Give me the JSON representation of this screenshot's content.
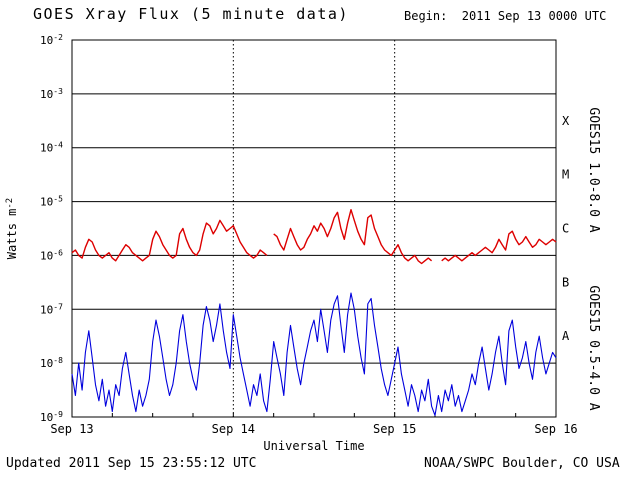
{
  "footer": {
    "updated": "Updated 2011 Sep 15 23:55:12 UTC",
    "credit": "NOAA/SWPC Boulder, CO USA"
  },
  "chart_data": {
    "type": "line",
    "title": "GOES Xray Flux (5 minute data)",
    "begin_label": "Begin:  2011 Sep 13 0000 UTC",
    "xlabel": "Universal Time",
    "ylabel": {
      "base": "Watts m",
      "exp": "-2"
    },
    "y_scale": "log10",
    "y_exponents": [
      -2,
      -3,
      -4,
      -5,
      -6,
      -7,
      -8,
      -9
    ],
    "ylim_log10": [
      -9,
      -2
    ],
    "x_range_hours": [
      0,
      72
    ],
    "x_step_hours": 0.5,
    "x_start": "2011 Sep 13 0000 UTC",
    "x_ticks": [
      {
        "hour": 0,
        "label": "Sep 13"
      },
      {
        "hour": 24,
        "label": "Sep 14"
      },
      {
        "hour": 48,
        "label": "Sep 15"
      },
      {
        "hour": 72,
        "label": "Sep 16"
      }
    ],
    "grid": {
      "horizontal": "solid",
      "vertical_day_lines": "dotted",
      "legend_position": "right-rotated"
    },
    "flare_classes": [
      {
        "label": "X",
        "log10_y": -3.5
      },
      {
        "label": "M",
        "log10_y": -4.5
      },
      {
        "label": "C",
        "log10_y": -5.5
      },
      {
        "label": "B",
        "log10_y": -6.5
      },
      {
        "label": "A",
        "log10_y": -7.5
      }
    ],
    "series": [
      {
        "name": "GOES15 1.0-8.0 A",
        "color": "#dd0000",
        "stroke_width": 1.4,
        "log10_values": [
          -5.95,
          -5.9,
          -6.0,
          -6.05,
          -5.85,
          -5.7,
          -5.75,
          -5.9,
          -6.0,
          -6.05,
          -6.0,
          -5.95,
          -6.05,
          -6.1,
          -6.0,
          -5.9,
          -5.8,
          -5.85,
          -5.95,
          -6.0,
          -6.05,
          -6.1,
          -6.05,
          -6.0,
          -5.7,
          -5.55,
          -5.65,
          -5.8,
          -5.9,
          -6.0,
          -6.05,
          -6.0,
          -5.6,
          -5.5,
          -5.7,
          -5.85,
          -5.95,
          -6.0,
          -5.9,
          -5.6,
          -5.4,
          -5.45,
          -5.6,
          -5.5,
          -5.35,
          -5.45,
          -5.55,
          -5.5,
          -5.45,
          -5.6,
          -5.75,
          -5.85,
          -5.95,
          -6.0,
          -6.05,
          -6.0,
          -5.9,
          -5.95,
          -6.0,
          null,
          -5.6,
          -5.65,
          -5.8,
          -5.9,
          -5.7,
          -5.5,
          -5.65,
          -5.8,
          -5.9,
          -5.85,
          -5.7,
          -5.6,
          -5.45,
          -5.55,
          -5.4,
          -5.5,
          -5.65,
          -5.5,
          -5.3,
          -5.2,
          -5.5,
          -5.7,
          -5.4,
          -5.15,
          -5.35,
          -5.55,
          -5.7,
          -5.8,
          -5.3,
          -5.25,
          -5.5,
          -5.65,
          -5.8,
          -5.9,
          -5.95,
          -6.0,
          -5.9,
          -5.8,
          -5.95,
          -6.05,
          -6.1,
          -6.05,
          -6.0,
          -6.1,
          -6.15,
          -6.1,
          -6.05,
          -6.1,
          null,
          null,
          -6.1,
          -6.05,
          -6.1,
          -6.05,
          -6.0,
          -6.05,
          -6.1,
          -6.05,
          -6.0,
          -5.95,
          -6.0,
          -5.95,
          -5.9,
          -5.85,
          -5.9,
          -5.95,
          -5.85,
          -5.7,
          -5.8,
          -5.9,
          -5.6,
          -5.55,
          -5.7,
          -5.8,
          -5.75,
          -5.65,
          -5.75,
          -5.85,
          -5.8,
          -5.7,
          -5.75,
          -5.8,
          -5.75,
          -5.7,
          -5.75
        ]
      },
      {
        "name": "GOES15 0.5-4.0 A",
        "color": "#0000dd",
        "stroke_width": 1.1,
        "log10_values": [
          -8.2,
          -8.6,
          -8.0,
          -8.5,
          -7.8,
          -7.4,
          -7.9,
          -8.4,
          -8.7,
          -8.3,
          -8.8,
          -8.5,
          -8.9,
          -8.4,
          -8.6,
          -8.1,
          -7.8,
          -8.2,
          -8.6,
          -8.9,
          -8.5,
          -8.8,
          -8.6,
          -8.3,
          -7.6,
          -7.2,
          -7.5,
          -7.9,
          -8.3,
          -8.6,
          -8.4,
          -8.0,
          -7.4,
          -7.1,
          -7.6,
          -8.0,
          -8.3,
          -8.5,
          -8.0,
          -7.3,
          -6.95,
          -7.2,
          -7.6,
          -7.3,
          -6.9,
          -7.4,
          -7.8,
          -8.1,
          -7.1,
          -7.5,
          -7.9,
          -8.2,
          -8.5,
          -8.8,
          -8.4,
          -8.6,
          -8.2,
          -8.7,
          -8.9,
          -8.3,
          -7.6,
          -7.9,
          -8.2,
          -8.6,
          -7.8,
          -7.3,
          -7.7,
          -8.1,
          -8.4,
          -8.0,
          -7.7,
          -7.4,
          -7.2,
          -7.6,
          -7.0,
          -7.4,
          -7.8,
          -7.2,
          -6.9,
          -6.75,
          -7.3,
          -7.8,
          -7.1,
          -6.7,
          -7.0,
          -7.5,
          -7.9,
          -8.2,
          -6.9,
          -6.8,
          -7.3,
          -7.7,
          -8.1,
          -8.4,
          -8.6,
          -8.3,
          -8.0,
          -7.7,
          -8.2,
          -8.5,
          -8.8,
          -8.4,
          -8.6,
          -8.9,
          -8.5,
          -8.7,
          -8.3,
          -8.8,
          -9.0,
          -8.6,
          -8.9,
          -8.5,
          -8.7,
          -8.4,
          -8.8,
          -8.6,
          -8.9,
          -8.7,
          -8.5,
          -8.2,
          -8.4,
          -8.0,
          -7.7,
          -8.1,
          -8.5,
          -8.2,
          -7.8,
          -7.5,
          -8.0,
          -8.4,
          -7.4,
          -7.2,
          -7.7,
          -8.1,
          -7.9,
          -7.6,
          -8.0,
          -8.3,
          -7.8,
          -7.5,
          -7.9,
          -8.2,
          -8.0,
          -7.8,
          -7.9
        ]
      }
    ]
  }
}
